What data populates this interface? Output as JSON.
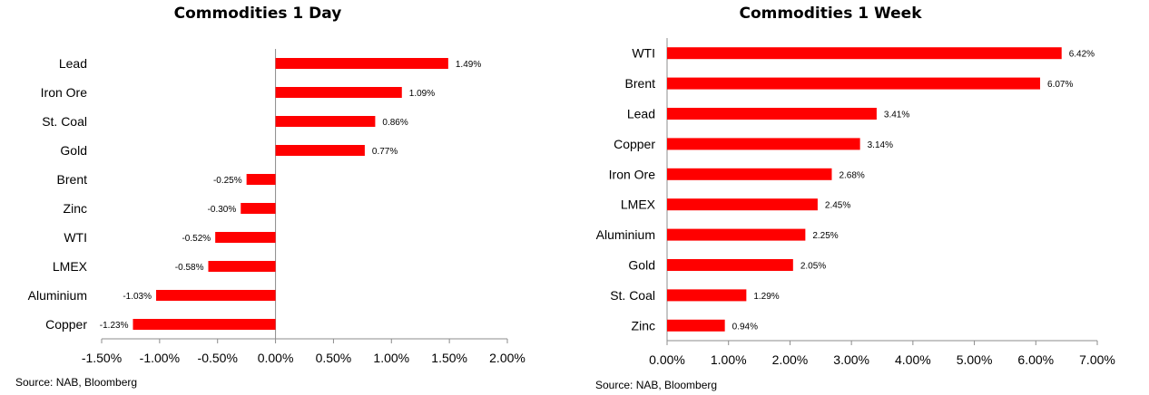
{
  "colors": {
    "bar": "#ff0000",
    "axis": "#8c8c8c",
    "text": "#000000"
  },
  "chart_data": [
    {
      "type": "bar",
      "orientation": "horizontal",
      "title": "Commodities 1 Day",
      "categories": [
        "Lead",
        "Iron Ore",
        "St. Coal",
        "Gold",
        "Brent",
        "Zinc",
        "WTI",
        "LMEX",
        "Aluminium",
        "Copper"
      ],
      "values": [
        1.49,
        1.09,
        0.86,
        0.77,
        -0.25,
        -0.3,
        -0.52,
        -0.58,
        -1.03,
        -1.23
      ],
      "value_labels": [
        "1.49%",
        "1.09%",
        "0.86%",
        "0.77%",
        "-0.25%",
        "-0.30%",
        "-0.52%",
        "-0.58%",
        "-1.03%",
        "-1.23%"
      ],
      "unit": "%",
      "xlim": [
        -1.5,
        2.0
      ],
      "xticks": [
        -1.5,
        -1.0,
        -0.5,
        0.0,
        0.5,
        1.0,
        1.5,
        2.0
      ],
      "xtick_labels": [
        "-1.50%",
        "-1.00%",
        "-0.50%",
        "0.00%",
        "0.50%",
        "1.00%",
        "1.50%",
        "2.00%"
      ],
      "grid": false,
      "legend": "none",
      "source": "Source: NAB, Bloomberg"
    },
    {
      "type": "bar",
      "orientation": "horizontal",
      "title": "Commodities 1 Week",
      "categories": [
        "WTI",
        "Brent",
        "Lead",
        "Copper",
        "Iron Ore",
        "LMEX",
        "Aluminium",
        "Gold",
        "St. Coal",
        "Zinc"
      ],
      "values": [
        6.42,
        6.07,
        3.41,
        3.14,
        2.68,
        2.45,
        2.25,
        2.05,
        1.29,
        0.94
      ],
      "value_labels": [
        "6.42%",
        "6.07%",
        "3.41%",
        "3.14%",
        "2.68%",
        "2.45%",
        "2.25%",
        "2.05%",
        "1.29%",
        "0.94%"
      ],
      "unit": "%",
      "xlim": [
        0.0,
        7.0
      ],
      "xticks": [
        0,
        1,
        2,
        3,
        4,
        5,
        6,
        7
      ],
      "xtick_labels": [
        "0.00%",
        "1.00%",
        "2.00%",
        "3.00%",
        "4.00%",
        "5.00%",
        "6.00%",
        "7.00%"
      ],
      "grid": false,
      "legend": "none",
      "source": "Source: NAB, Bloomberg"
    }
  ]
}
